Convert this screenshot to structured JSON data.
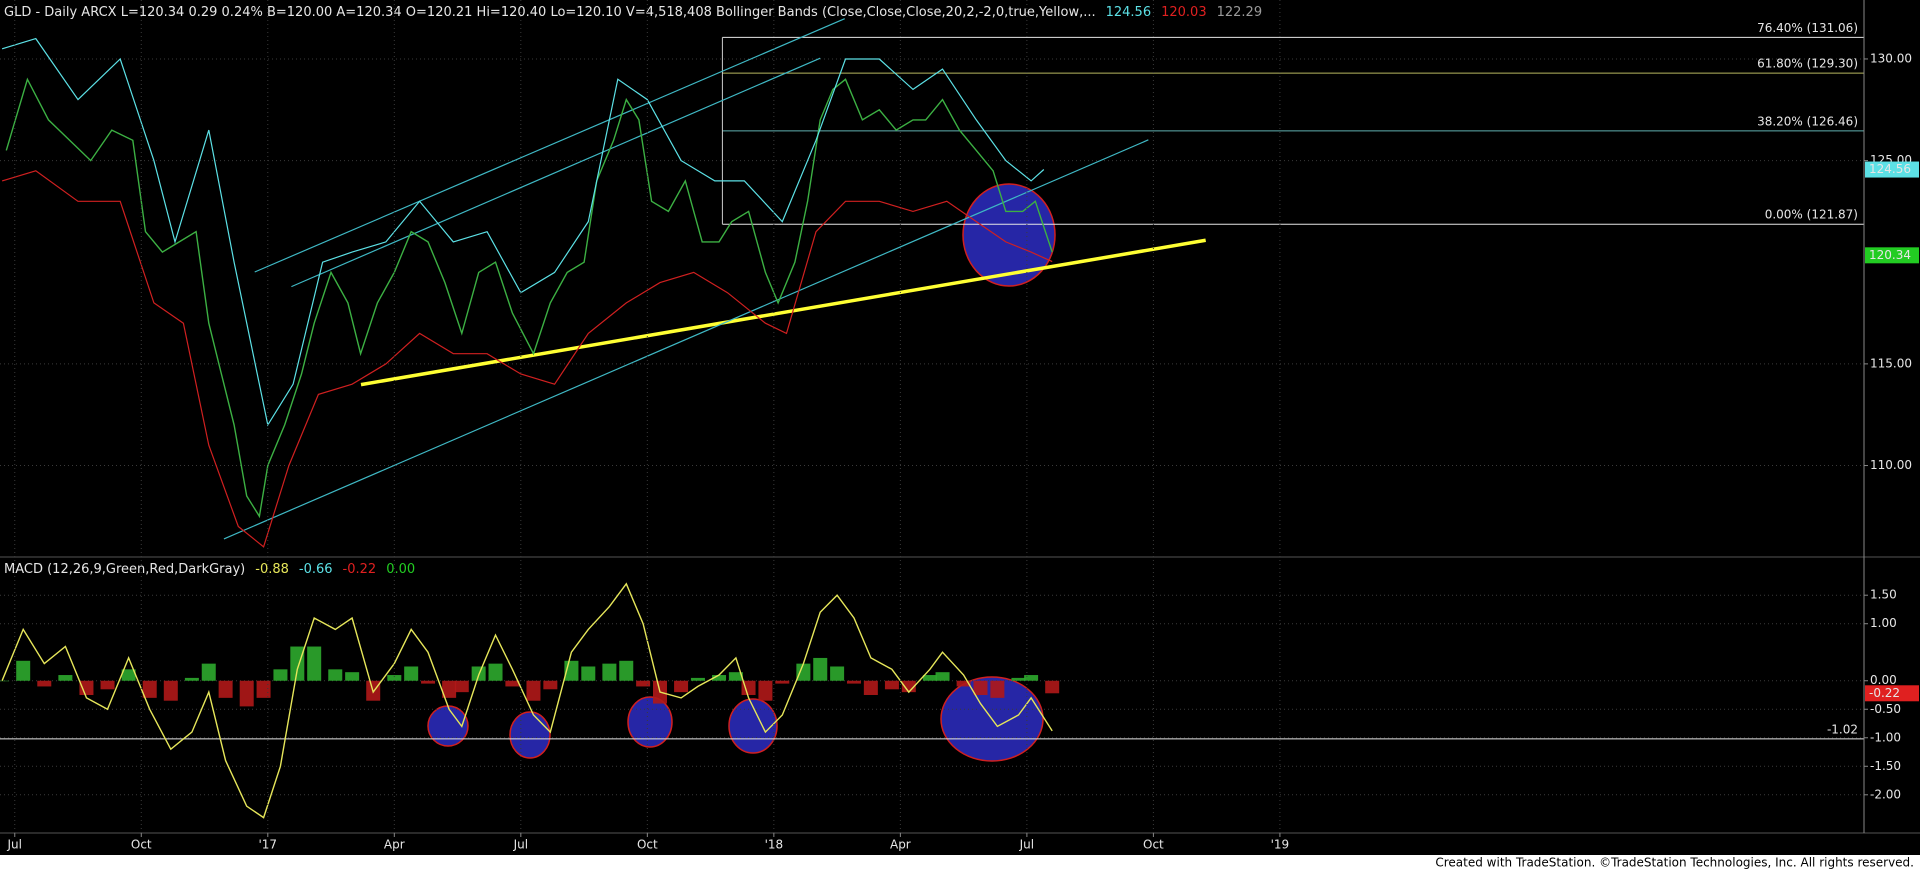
{
  "chart_data": [
    {
      "type": "line",
      "title": "GLD - Daily ARCX L=120.34 0.29 0.24% B=120.00 A=120.34 O=120.21 Hi=120.40 Lo=120.10 V=4,518,408 Bollinger Bands (Close,Close,Close,20,2,-2,0,true,Yellow,...",
      "title_values": [
        {
          "label": "124.56",
          "color": "#5ce1e6"
        },
        {
          "label": "120.03",
          "color": "#e02020"
        },
        {
          "label": "122.29",
          "color": "#9a9a9a"
        }
      ],
      "xlim": [
        -0.35,
        43.85
      ],
      "ylim": [
        105.5,
        132.9
      ],
      "yticks": [
        {
          "value": 130,
          "label": "130.00"
        },
        {
          "value": 125,
          "label": "125.00"
        },
        {
          "value": 115,
          "label": "115.00"
        },
        {
          "value": 110,
          "label": "110.00"
        }
      ],
      "grid": true,
      "series": [
        {
          "color": "#3cb043",
          "width": 1.4,
          "x": [
            -0.2,
            0.3,
            0.8,
            1.3,
            1.8,
            2.3,
            2.8,
            3.1,
            3.5,
            3.9,
            4.3,
            4.6,
            4.9,
            5.2,
            5.5,
            5.8,
            6.0,
            6.4,
            6.8,
            7.1,
            7.5,
            7.9,
            8.2,
            8.6,
            9.0,
            9.4,
            9.8,
            10.2,
            10.6,
            11.0,
            11.4,
            11.8,
            12.3,
            12.7,
            13.1,
            13.5,
            13.8,
            14.2,
            14.5,
            14.8,
            15.1,
            15.5,
            15.9,
            16.3,
            16.7,
            17.0,
            17.4,
            17.8,
            18.1,
            18.5,
            18.8,
            19.1,
            19.4,
            19.7,
            20.1,
            20.5,
            20.9,
            21.3,
            21.6,
            22.0,
            22.4,
            22.8,
            23.2,
            23.5,
            23.9,
            24.2,
            24.6
          ],
          "values": [
            125.5,
            129,
            127,
            126,
            125,
            126.5,
            126,
            121.5,
            120.5,
            121,
            121.5,
            117,
            114.5,
            112,
            108.5,
            107.5,
            110,
            112,
            114.5,
            117,
            119.5,
            118,
            115.5,
            118,
            119.5,
            121.5,
            121,
            119,
            116.5,
            119.5,
            120,
            117.5,
            115.5,
            118,
            119.5,
            120,
            124,
            126,
            128,
            127,
            123,
            122.5,
            124,
            121,
            121,
            122,
            122.5,
            119.5,
            118,
            120,
            123,
            127,
            128.5,
            129,
            127,
            127.5,
            126.5,
            127,
            127,
            128,
            126.5,
            125.5,
            124.5,
            122.5,
            122.5,
            123,
            120.5
          ]
        },
        {
          "color": "#5ce1e6",
          "width": 1.2,
          "x": [
            -0.3,
            0.5,
            1.5,
            2.5,
            3.3,
            3.8,
            4.6,
            5.2,
            6.0,
            6.6,
            7.3,
            8.0,
            8.8,
            9.6,
            10.4,
            11.2,
            12.0,
            12.8,
            13.6,
            14.3,
            15.0,
            15.8,
            16.6,
            17.3,
            18.2,
            19.0,
            19.7,
            20.5,
            21.3,
            22.0,
            22.8,
            23.5,
            24.1,
            24.4
          ],
          "values": [
            130.5,
            131,
            128,
            130,
            125,
            121,
            126.5,
            120,
            112,
            114,
            120,
            120.5,
            121,
            123,
            121,
            121.5,
            118.5,
            119.5,
            122,
            129,
            128,
            125,
            124,
            124,
            122,
            126,
            130,
            130,
            128.5,
            129.5,
            127,
            125,
            124,
            124.56
          ]
        },
        {
          "color": "#d02020",
          "width": 1.2,
          "x": [
            -0.3,
            0.5,
            1.5,
            2.5,
            3.3,
            4.0,
            4.6,
            5.3,
            5.9,
            6.5,
            7.2,
            8.0,
            8.8,
            9.6,
            10.4,
            11.2,
            12.0,
            12.8,
            13.6,
            14.5,
            15.3,
            16.1,
            16.9,
            17.8,
            18.3,
            19.0,
            19.7,
            20.5,
            21.3,
            22.1,
            22.8,
            23.5,
            24.1,
            24.6
          ],
          "values": [
            124,
            124.5,
            123,
            123,
            118,
            117,
            111,
            107,
            106,
            110,
            113.5,
            114,
            115,
            116.5,
            115.5,
            115.5,
            114.5,
            114,
            116.5,
            118,
            119,
            119.5,
            118.5,
            117,
            116.5,
            121.5,
            123,
            123,
            122.5,
            123,
            122,
            121,
            120.5,
            120.03
          ]
        }
      ],
      "trendlines": [
        {
          "color": "#ffff33",
          "width": 3.5,
          "x": [
            8.21,
            28.24
          ],
          "values": [
            113.98,
            121.08
          ]
        },
        {
          "color": "#3fb8c4",
          "width": 1.2,
          "x": [
            4.96,
            26.88
          ],
          "values": [
            106.39,
            126.02
          ]
        },
        {
          "color": "#3fb8c4",
          "width": 1.2,
          "x": [
            5.69,
            19.68
          ],
          "values": [
            119.52,
            131.98
          ]
        },
        {
          "color": "#3fb8c4",
          "width": 1.2,
          "x": [
            6.56,
            19.1
          ],
          "values": [
            118.8,
            130.04
          ]
        }
      ],
      "anchor_x": 16.78,
      "levels": [
        {
          "value": 131.06,
          "label": "76.40% (131.06)",
          "color": "#e6e6e6"
        },
        {
          "value": 129.3,
          "label": "61.80% (129.30)",
          "color": "#b8b860"
        },
        {
          "value": 126.46,
          "label": "38.20% (126.46)",
          "color": "#5fb0b0"
        },
        {
          "value": 121.87,
          "label": "0.00% (121.87)",
          "color": "#e6e6e6"
        }
      ],
      "tags": [
        {
          "value": 124.56,
          "color": "#5ce1e6",
          "text_color": "#000000"
        },
        {
          "value": 120.34,
          "color": "#22cc22",
          "text_color": "#000000"
        }
      ]
    },
    {
      "type": "line",
      "title": "MACD (12,26,9,Green,Red,DarkGray)",
      "title_values": [
        {
          "label": "-0.88",
          "color": "#e6e65a"
        },
        {
          "label": "-0.66",
          "color": "#5ce1e6"
        },
        {
          "label": "-0.22",
          "color": "#e02020"
        },
        {
          "label": "0.00",
          "color": "#22cc22"
        }
      ],
      "xlim": [
        -0.35,
        43.85
      ],
      "ylim": [
        -2.67,
        2.17
      ],
      "xticks": [
        {
          "value": 0,
          "label": "Jul"
        },
        {
          "value": 3,
          "label": "Oct"
        },
        {
          "value": 6,
          "label": "'17"
        },
        {
          "value": 9,
          "label": "Apr"
        },
        {
          "value": 12,
          "label": "Jul"
        },
        {
          "value": 15,
          "label": "Oct"
        },
        {
          "value": 18,
          "label": "'18"
        },
        {
          "value": 21,
          "label": "Apr"
        },
        {
          "value": 24,
          "label": "Jul"
        },
        {
          "value": 27,
          "label": "Oct"
        },
        {
          "value": 30,
          "label": "'19"
        }
      ],
      "yticks": [
        {
          "value": 1.5,
          "label": "1.50"
        },
        {
          "value": 1,
          "label": "1.00"
        },
        {
          "value": 0,
          "label": "0.00"
        },
        {
          "value": -0.5,
          "label": "-0.50"
        },
        {
          "value": -1,
          "label": "-1.00"
        },
        {
          "value": -1.5,
          "label": "-1.50"
        },
        {
          "value": -2,
          "label": "-2.00"
        }
      ],
      "grid": true,
      "x": [
        -0.3,
        0.2,
        0.7,
        1.2,
        1.7,
        2.2,
        2.7,
        3.2,
        3.7,
        4.2,
        4.6,
        5.0,
        5.5,
        5.9,
        6.3,
        6.7,
        7.1,
        7.6,
        8.0,
        8.5,
        9.0,
        9.4,
        9.8,
        10.3,
        10.6,
        11.0,
        11.4,
        11.8,
        12.3,
        12.7,
        13.2,
        13.6,
        14.1,
        14.5,
        14.9,
        15.3,
        15.8,
        16.2,
        16.7,
        17.1,
        17.4,
        17.8,
        18.2,
        18.7,
        19.1,
        19.5,
        19.9,
        20.3,
        20.8,
        21.2,
        21.7,
        22.0,
        22.5,
        22.9,
        23.3,
        23.8,
        24.1,
        24.6
      ],
      "series": [
        {
          "type": "bar",
          "pos_color": "#2eaa2e",
          "neg_color": "#b01818",
          "values": [
            0,
            0.35,
            -0.1,
            0.1,
            -0.25,
            -0.15,
            0.2,
            -0.3,
            -0.35,
            0.05,
            0.3,
            -0.3,
            -0.45,
            -0.3,
            0.2,
            0.6,
            0.6,
            0.2,
            0.15,
            -0.35,
            0.1,
            0.25,
            -0.05,
            -0.3,
            -0.2,
            0.25,
            0.3,
            -0.1,
            -0.35,
            -0.15,
            0.35,
            0.25,
            0.3,
            0.35,
            -0.1,
            -0.4,
            -0.2,
            0.05,
            0.1,
            0.15,
            -0.25,
            -0.35,
            -0.05,
            0.3,
            0.4,
            0.25,
            -0.05,
            -0.25,
            -0.15,
            -0.2,
            0.1,
            0.15,
            -0.1,
            -0.25,
            -0.3,
            0.05,
            0.1,
            -0.22
          ]
        },
        {
          "color": "#e6e65a",
          "width": 1.4,
          "values": [
            0,
            0.9,
            0.3,
            0.6,
            -0.3,
            -0.5,
            0.4,
            -0.5,
            -1.2,
            -0.9,
            -0.2,
            -1.4,
            -2.2,
            -2.4,
            -1.5,
            0.2,
            1.1,
            0.9,
            1.1,
            -0.2,
            0.3,
            0.9,
            0.5,
            -0.5,
            -0.8,
            0.1,
            0.8,
            0.2,
            -0.6,
            -0.9,
            0.5,
            0.9,
            1.3,
            1.7,
            1.0,
            -0.2,
            -0.3,
            -0.1,
            0.1,
            0.4,
            -0.3,
            -0.9,
            -0.6,
            0.3,
            1.2,
            1.5,
            1.1,
            0.4,
            0.2,
            -0.2,
            0.2,
            0.5,
            0.1,
            -0.4,
            -0.8,
            -0.6,
            -0.3,
            -0.88
          ]
        }
      ],
      "levels": [
        {
          "value": -1.02,
          "color": "#e6e6e6"
        }
      ],
      "tags": [
        {
          "value": -0.22,
          "color": "#e02020",
          "text_color": "#ffffff"
        }
      ]
    }
  ],
  "footer": "Created with TradeStation. ©TradeStation Technologies, Inc. All rights reserved."
}
